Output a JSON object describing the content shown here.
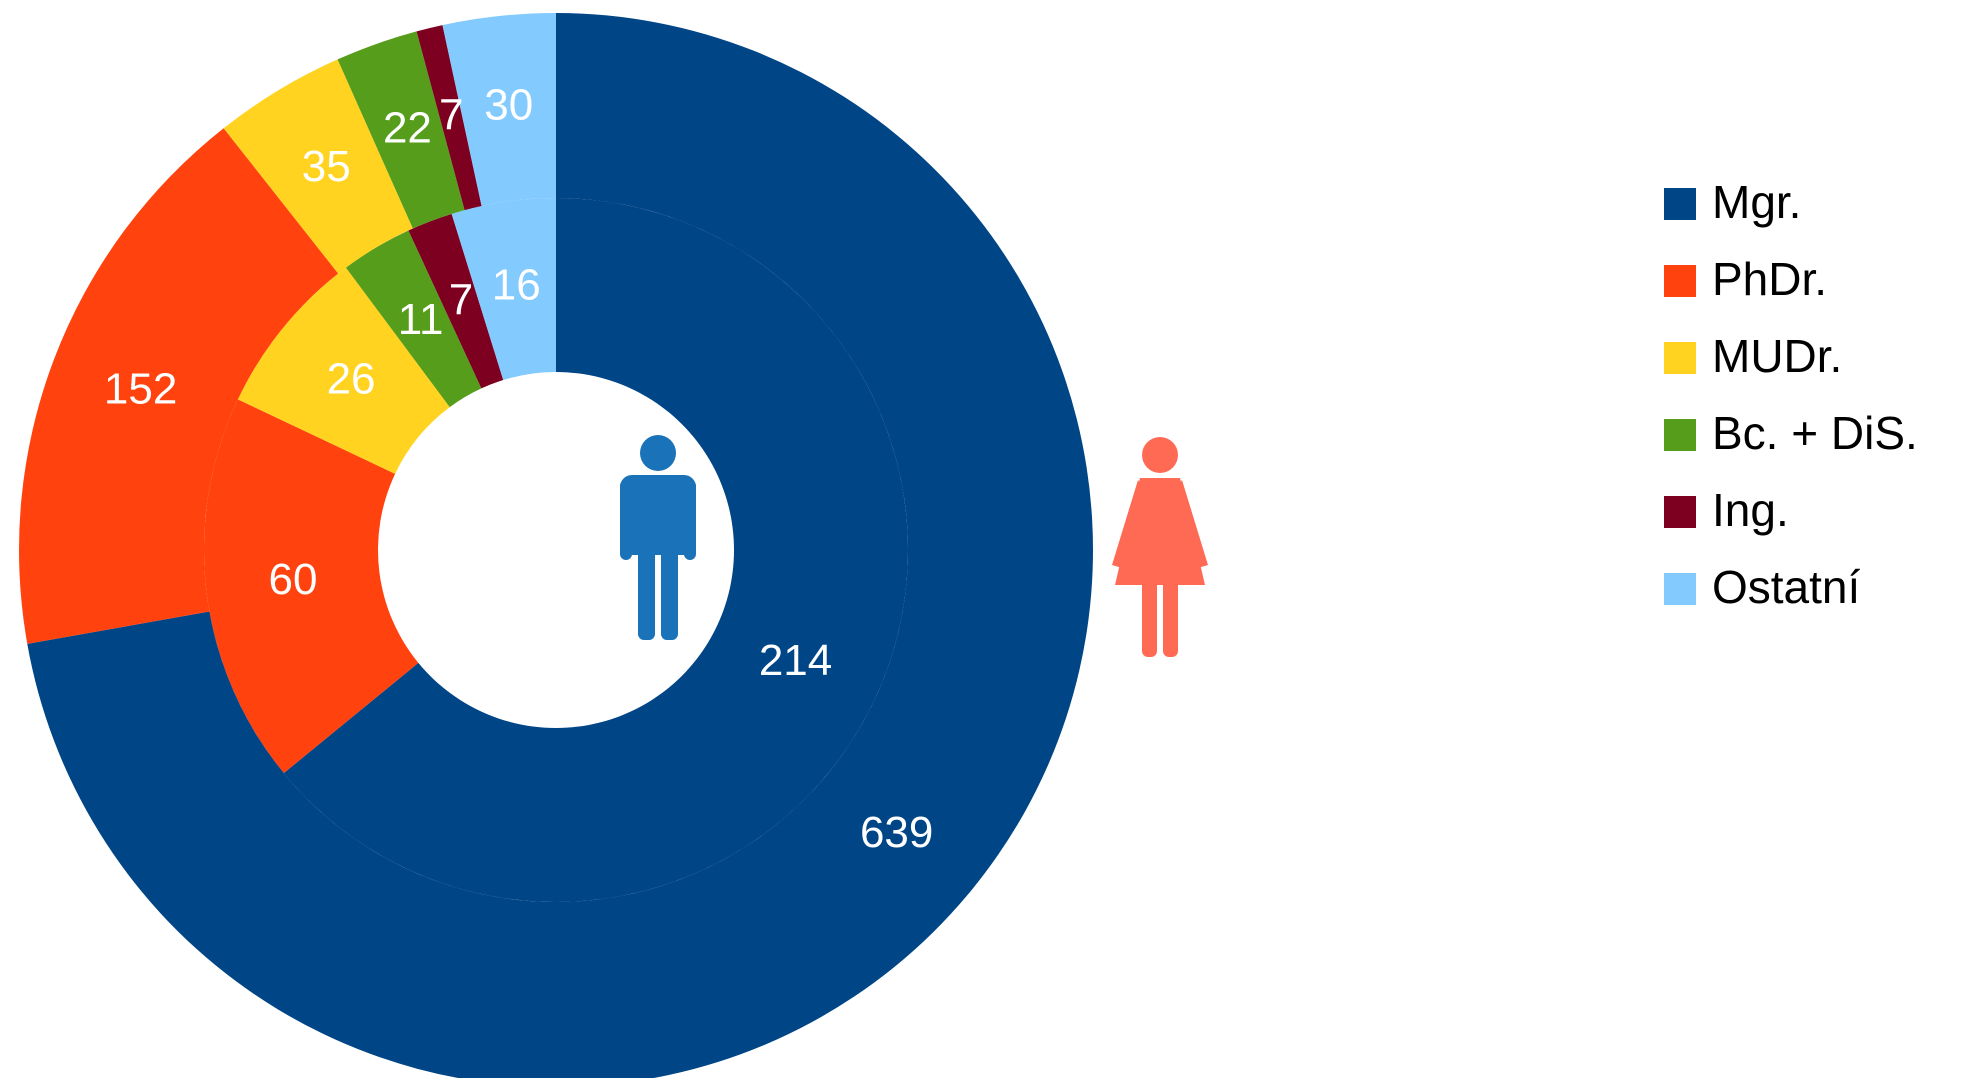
{
  "chart_data": {
    "type": "donut",
    "categories": [
      "Mgr.",
      "PhDr.",
      "MUDr.",
      "Bc. + DiS.",
      "Ing.",
      "Ostatní"
    ],
    "colors": [
      "#004586",
      "#ff420e",
      "#ffd320",
      "#579d1c",
      "#7e0021",
      "#83caff"
    ],
    "series": [
      {
        "values": [
          214,
          60,
          26,
          11,
          7,
          16
        ]
      },
      {
        "values": [
          639,
          152,
          35,
          22,
          7,
          30
        ]
      }
    ],
    "legend": "right"
  }
}
